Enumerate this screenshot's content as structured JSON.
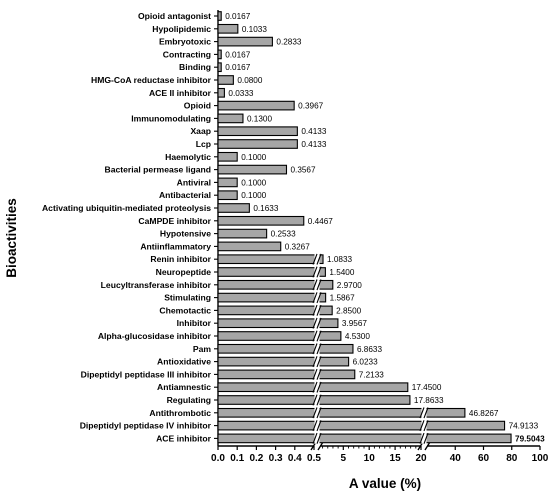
{
  "chart_data": {
    "type": "bar",
    "orientation": "horizontal",
    "xlabel": "A value (%)",
    "ylabel": "Bioactivities",
    "x_axis_segments": [
      {
        "range": [
          0,
          0.5
        ],
        "ticks": [
          "0.0",
          "0.1",
          "0.2",
          "0.3",
          "0.4",
          "0.5"
        ]
      },
      {
        "range": [
          0.5,
          20
        ],
        "ticks": [
          "5",
          "10",
          "15",
          "20"
        ]
      },
      {
        "range": [
          20,
          100
        ],
        "ticks": [
          "40",
          "60",
          "80",
          "100"
        ]
      }
    ],
    "grid": false,
    "categories": [
      "Opioid antagonist",
      "Hypolipidemic",
      "Embryotoxic",
      "Contracting",
      "Binding",
      "HMG-CoA reductase inhibitor",
      "ACE II inhibitor",
      "Opioid",
      "Immunomodulating",
      "Xaap",
      "Lcp",
      "Haemolytic",
      "Bacterial permease ligand",
      "Antiviral",
      "Antibacterial",
      "Activating ubiquitin-mediated proteolysis",
      "CaMPDE inhibitor",
      "Hypotensive",
      "Antiinflammatory",
      "Renin inhibitor",
      "Neuropeptide",
      "Leucyltransferase inhibitor",
      "Stimulating",
      "Chemotactic",
      "Inhibitor",
      "Alpha-glucosidase inhibitor",
      "Pam",
      "Antioxidative",
      "Dipeptidyl peptidase III inhibitor",
      "Antiamnestic",
      "Regulating",
      "Antithrombotic",
      "Dipeptidyl peptidase IV inhibitor",
      "ACE inhibitor"
    ],
    "values": [
      0.0167,
      0.1033,
      0.2833,
      0.0167,
      0.0167,
      0.08,
      0.0333,
      0.3967,
      0.13,
      0.4133,
      0.4133,
      0.1,
      0.3567,
      0.1,
      0.1,
      0.1633,
      0.4467,
      0.2533,
      0.3267,
      1.0833,
      1.54,
      2.97,
      1.5867,
      2.85,
      3.9567,
      4.53,
      6.8633,
      6.0233,
      7.2133,
      17.45,
      17.8633,
      46.8267,
      74.9133,
      79.5043
    ],
    "value_labels": [
      "0.0167",
      "0.1033",
      "0.2833",
      "0.0167",
      "0.0167",
      "0.0800",
      "0.0333",
      "0.3967",
      "0.1300",
      "0.4133",
      "0.4133",
      "0.1000",
      "0.3567",
      "0.1000",
      "0.1000",
      "0.1633",
      "0.4467",
      "0.2533",
      "0.3267",
      "1.0833",
      "1.5400",
      "2.9700",
      "1.5867",
      "2.8500",
      "3.9567",
      "4.5300",
      "6.8633",
      "6.0233",
      "7.2133",
      "17.4500",
      "17.8633",
      "46.8267",
      "74.9133",
      "79.5043"
    ],
    "bar_color": "#a6a6a6"
  }
}
